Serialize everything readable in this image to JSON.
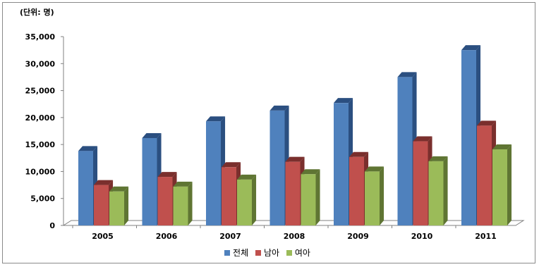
{
  "unit_label": "(단위: 명)",
  "colors": {
    "total": "#4f81bd",
    "total_dark": "#2b4f80",
    "male": "#c0504d",
    "male_dark": "#7a2f2d",
    "female": "#9bbb59",
    "female_dark": "#5f7533"
  },
  "chart_data": {
    "type": "bar",
    "title": "",
    "xlabel": "",
    "ylabel": "(단위: 명)",
    "ylim": [
      0,
      35000
    ],
    "yticks": [
      "0",
      "5,000",
      "10,000",
      "15,000",
      "20,000",
      "25,000",
      "30,000",
      "35,000"
    ],
    "categories": [
      "2005",
      "2006",
      "2007",
      "2008",
      "2009",
      "2010",
      "2011"
    ],
    "series": [
      {
        "name": "전체",
        "values": [
          13800,
          16200,
          19300,
          21300,
          22700,
          27500,
          32500
        ]
      },
      {
        "name": "남아",
        "values": [
          7500,
          9000,
          10800,
          11800,
          12700,
          15600,
          18500
        ]
      },
      {
        "name": "여아",
        "values": [
          6300,
          7200,
          8500,
          9500,
          10000,
          11900,
          14100
        ]
      }
    ],
    "grid": false,
    "legend": "bottom"
  }
}
